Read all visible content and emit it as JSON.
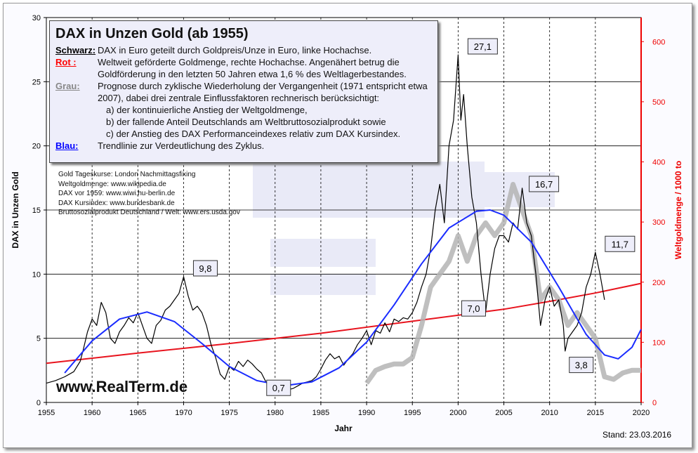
{
  "chart_data": {
    "type": "line",
    "title": "DAX in Unzen Gold   (ab 1955)",
    "xlabel": "Jahr",
    "ylabel": "DAX in Unzen Gold",
    "ylabel_right": "Weltgoldmenge / 1000 to",
    "xlim": [
      1955,
      2020
    ],
    "ylim": [
      0,
      30
    ],
    "ylim_right": [
      0,
      640
    ],
    "x_ticks": [
      "1955",
      "1960",
      "1965",
      "1970",
      "1975",
      "1980",
      "1985",
      "1990",
      "1995",
      "2000",
      "2005",
      "2010",
      "2015",
      "2020"
    ],
    "y_ticks": [
      "0",
      "5",
      "10",
      "15",
      "20",
      "25",
      "30"
    ],
    "y_ticks_right": [
      "0",
      "100",
      "200",
      "300",
      "400",
      "500",
      "600"
    ],
    "series": [
      {
        "name": "Schwarz",
        "color": "#000000",
        "axis": "left",
        "points": [
          [
            1955,
            1.5
          ],
          [
            1956,
            1.7
          ],
          [
            1957,
            2
          ],
          [
            1958,
            2.4
          ],
          [
            1958.7,
            3.2
          ],
          [
            1959,
            4
          ],
          [
            1959.5,
            5.5
          ],
          [
            1960,
            6.5
          ],
          [
            1960.5,
            6
          ],
          [
            1961,
            7.8
          ],
          [
            1961.5,
            7
          ],
          [
            1962,
            5
          ],
          [
            1962.5,
            4.6
          ],
          [
            1963,
            5.5
          ],
          [
            1963.5,
            6
          ],
          [
            1964,
            6.6
          ],
          [
            1964.5,
            6.2
          ],
          [
            1965,
            7
          ],
          [
            1965.5,
            6
          ],
          [
            1966,
            5
          ],
          [
            1966.5,
            4.6
          ],
          [
            1967,
            6
          ],
          [
            1967.5,
            6.4
          ],
          [
            1968,
            7.2
          ],
          [
            1968.5,
            7.5
          ],
          [
            1969,
            8
          ],
          [
            1969.5,
            8.5
          ],
          [
            1970,
            9.8
          ],
          [
            1970.5,
            8.3
          ],
          [
            1971,
            7.2
          ],
          [
            1971.5,
            7.5
          ],
          [
            1972,
            7
          ],
          [
            1972.5,
            6
          ],
          [
            1973,
            4.5
          ],
          [
            1973.5,
            3.5
          ],
          [
            1974,
            2.2
          ],
          [
            1974.5,
            1.8
          ],
          [
            1975,
            2.8
          ],
          [
            1975.5,
            2.5
          ],
          [
            1976,
            3.2
          ],
          [
            1976.5,
            2.8
          ],
          [
            1977,
            3.3
          ],
          [
            1977.5,
            3
          ],
          [
            1978,
            2.6
          ],
          [
            1978.5,
            2.3
          ],
          [
            1979,
            1.6
          ],
          [
            1979.5,
            1.5
          ],
          [
            1980,
            0.7
          ],
          [
            1980.5,
            1
          ],
          [
            1981,
            1.2
          ],
          [
            1981.5,
            1
          ],
          [
            1982,
            1.1
          ],
          [
            1982.5,
            1.3
          ],
          [
            1983,
            1.5
          ],
          [
            1983.5,
            1.6
          ],
          [
            1984,
            1.7
          ],
          [
            1984.5,
            2
          ],
          [
            1985,
            2.6
          ],
          [
            1985.5,
            3.3
          ],
          [
            1986,
            3.8
          ],
          [
            1986.5,
            3.4
          ],
          [
            1987,
            3.6
          ],
          [
            1987.5,
            2.9
          ],
          [
            1988,
            3.4
          ],
          [
            1988.5,
            3.8
          ],
          [
            1989,
            4.5
          ],
          [
            1989.5,
            5
          ],
          [
            1990,
            5.6
          ],
          [
            1990.5,
            4.5
          ],
          [
            1991,
            5.6
          ],
          [
            1991.5,
            5.4
          ],
          [
            1992,
            6.2
          ],
          [
            1992.5,
            5.5
          ],
          [
            1993,
            6.5
          ],
          [
            1993.5,
            6.3
          ],
          [
            1994,
            6.6
          ],
          [
            1994.5,
            6.5
          ],
          [
            1995,
            7
          ],
          [
            1995.5,
            7.8
          ],
          [
            1996,
            9
          ],
          [
            1996.5,
            10
          ],
          [
            1997,
            12
          ],
          [
            1997.5,
            15
          ],
          [
            1998,
            17
          ],
          [
            1998.5,
            14
          ],
          [
            1999,
            20
          ],
          [
            1999.5,
            22
          ],
          [
            2000,
            27.1
          ],
          [
            2000.3,
            22
          ],
          [
            2000.6,
            24
          ],
          [
            2001,
            20
          ],
          [
            2001.5,
            16
          ],
          [
            2002,
            14
          ],
          [
            2002.5,
            10
          ],
          [
            2003,
            7
          ],
          [
            2003.5,
            10
          ],
          [
            2004,
            12
          ],
          [
            2004.5,
            13
          ],
          [
            2005,
            13
          ],
          [
            2005.5,
            12.5
          ],
          [
            2006,
            14
          ],
          [
            2006.5,
            13.5
          ],
          [
            2007,
            16.7
          ],
          [
            2007.5,
            14
          ],
          [
            2008,
            13
          ],
          [
            2008.5,
            10
          ],
          [
            2009,
            6
          ],
          [
            2009.5,
            8
          ],
          [
            2010,
            9
          ],
          [
            2010.5,
            7.5
          ],
          [
            2011,
            8
          ],
          [
            2011.5,
            6
          ],
          [
            2011.7,
            4
          ],
          [
            2012,
            5
          ],
          [
            2012.5,
            5.5
          ],
          [
            2013,
            6
          ],
          [
            2013.5,
            7
          ],
          [
            2014,
            9
          ],
          [
            2014.5,
            10
          ],
          [
            2015,
            11.7
          ],
          [
            2015.5,
            10
          ],
          [
            2016,
            8
          ]
        ]
      },
      {
        "name": "Grau",
        "color": "#b4b4b4",
        "axis": "left",
        "points": [
          [
            1990,
            1.5
          ],
          [
            1991,
            2.5
          ],
          [
            1992,
            2.8
          ],
          [
            1993,
            3
          ],
          [
            1994,
            3
          ],
          [
            1995,
            3.5
          ],
          [
            1996,
            6
          ],
          [
            1997,
            9
          ],
          [
            1998,
            10
          ],
          [
            1999,
            11
          ],
          [
            2000,
            13
          ],
          [
            2001,
            11
          ],
          [
            2002,
            13
          ],
          [
            2003,
            14
          ],
          [
            2004,
            13
          ],
          [
            2005,
            14
          ],
          [
            2006,
            17
          ],
          [
            2007,
            15
          ],
          [
            2008,
            13
          ],
          [
            2009,
            8
          ],
          [
            2010,
            9
          ],
          [
            2011,
            8
          ],
          [
            2012,
            6
          ],
          [
            2013,
            7
          ],
          [
            2014,
            6
          ],
          [
            2015,
            5
          ],
          [
            2016,
            2
          ],
          [
            2017,
            1.8
          ],
          [
            2018,
            2.3
          ],
          [
            2019,
            2.5
          ],
          [
            2020,
            2.5
          ]
        ]
      },
      {
        "name": "Blau",
        "color": "#1a2cff",
        "axis": "left",
        "points": [
          [
            1957,
            2.3
          ],
          [
            1960,
            4.8
          ],
          [
            1963,
            6.5
          ],
          [
            1966,
            7.05
          ],
          [
            1969,
            6.3
          ],
          [
            1972,
            4.6
          ],
          [
            1975,
            2.8
          ],
          [
            1978,
            1.7
          ],
          [
            1981,
            1.3
          ],
          [
            1984,
            1.6
          ],
          [
            1987,
            2.7
          ],
          [
            1990,
            4.7
          ],
          [
            1993,
            7.6
          ],
          [
            1996,
            10.8
          ],
          [
            1999,
            13.6
          ],
          [
            2002,
            14.9
          ],
          [
            2003.5,
            15
          ],
          [
            2005,
            14.6
          ],
          [
            2008,
            12.5
          ],
          [
            2011,
            9
          ],
          [
            2014,
            5.3
          ],
          [
            2016,
            3.7
          ],
          [
            2017.5,
            3.4
          ],
          [
            2019,
            4.3
          ],
          [
            2020,
            5.7
          ]
        ]
      },
      {
        "name": "Rot",
        "color": "#e8141e",
        "axis": "right",
        "points": [
          [
            1955,
            65
          ],
          [
            1965,
            82
          ],
          [
            1975,
            98
          ],
          [
            1985,
            115
          ],
          [
            1995,
            135
          ],
          [
            2005,
            155
          ],
          [
            2010,
            168
          ],
          [
            2015,
            182
          ],
          [
            2020,
            198
          ]
        ]
      }
    ],
    "annotations": [
      {
        "x": 2000,
        "y": 27.1,
        "label": "27,1"
      },
      {
        "x": 1970,
        "y": 9.8,
        "label": "9,8"
      },
      {
        "x": 1980,
        "y": 0.7,
        "label": "0,7"
      },
      {
        "x": 2003,
        "y": 7,
        "label": "7,0"
      },
      {
        "x": 2007,
        "y": 16.7,
        "label": "16,7"
      },
      {
        "x": 2012,
        "y": 3.8,
        "label": "3,8"
      },
      {
        "x": 2015,
        "y": 11.7,
        "label": "11,7"
      }
    ],
    "grid": true
  },
  "legend": {
    "title": "DAX in Unzen Gold   (ab 1955)",
    "items": [
      {
        "key": "Schwarz:",
        "text": "DAX in Euro geteilt durch Goldpreis/Unze in Euro, linke Hochachse.",
        "color": "#000000"
      },
      {
        "key": "Rot :",
        "text": "Weltweit geförderte Goldmenge, rechte Hochachse. Angenähert betrug die Goldförderung in den letzten 50 Jahren etwa  1,6 %  des Weltlagerbestandes.",
        "color": "#ff0000"
      },
      {
        "key": "Grau:",
        "text": "Prognose durch zyklische Wiederholung der Vergangenheit (1971 entspricht etwa 2007),  dabei drei zentrale Einflussfaktoren rechnerisch berücksichtigt:",
        "color": "#888888"
      },
      {
        "key": "Blau:",
        "text": "Trendlinie zur Verdeutlichung des Zyklus.",
        "color": "#0000ff"
      }
    ],
    "subitems": [
      "a) der kontinuierliche Anstieg der Weltgoldmenge,",
      "b) der fallende Anteil Deutschlands am Weltbruttosozialprodukt sowie",
      "c) der Anstieg des DAX Performanceindexes relativ zum DAX Kursindex."
    ]
  },
  "sources": [
    "Gold Tageskurse: London Nachmittagsfixing",
    "Weltgoldmenge: www.wikipedia.de",
    "DAX vor 1959:  www.wiwi.hu-berlin.de",
    "DAX Kursindex: www.bundesbank.de",
    "Bruttosozialprodukt Deutschland / Welt: www.ers.usda.gov"
  ],
  "watermark": "RealTerm.de",
  "site": "www.RealTerm.de",
  "stand": "Stand: 23.03.2016"
}
